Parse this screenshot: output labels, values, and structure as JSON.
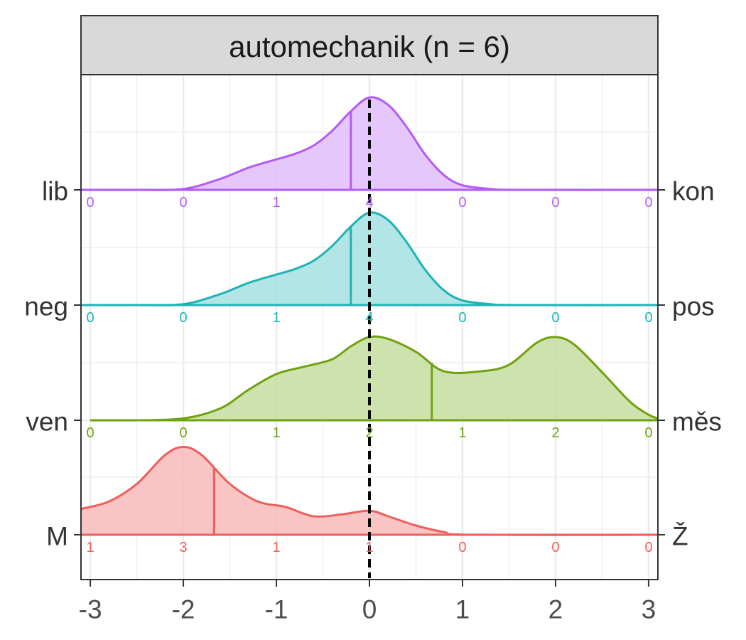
{
  "chart_data": {
    "type": "area",
    "subtype": "ridgeline-density",
    "facet_title": "automechanik (n = 6)",
    "xlim": [
      -3.1,
      3.1
    ],
    "x_ticks": [
      "-3",
      "-2",
      "-1",
      "0",
      "1",
      "2",
      "3"
    ],
    "x_tick_values": [
      -3,
      -2,
      -1,
      0,
      1,
      2,
      3
    ],
    "reference_line_x": 0,
    "grid": true,
    "series": [
      {
        "left_label": "lib",
        "right_label": "kon",
        "color": "#B35CF5",
        "fill": "#E0BDFB",
        "mean": -0.2,
        "counts_at": [
          -3,
          -2,
          -1,
          0,
          1,
          2,
          3
        ],
        "counts": [
          0,
          0,
          1,
          4,
          0,
          0,
          0
        ],
        "density": [
          [
            -3.1,
            0
          ],
          [
            -2.5,
            0
          ],
          [
            -2.0,
            0.01
          ],
          [
            -1.6,
            0.12
          ],
          [
            -1.3,
            0.24
          ],
          [
            -1.0,
            0.33
          ],
          [
            -0.8,
            0.39
          ],
          [
            -0.6,
            0.48
          ],
          [
            -0.4,
            0.64
          ],
          [
            -0.2,
            0.85
          ],
          [
            0.0,
            1.0
          ],
          [
            0.2,
            0.92
          ],
          [
            0.4,
            0.68
          ],
          [
            0.6,
            0.38
          ],
          [
            0.8,
            0.16
          ],
          [
            1.0,
            0.05
          ],
          [
            1.3,
            0.01
          ],
          [
            1.6,
            0
          ],
          [
            3.1,
            0
          ]
        ]
      },
      {
        "left_label": "neg",
        "right_label": "pos",
        "color": "#1FB2B6",
        "fill": "#A4E0E1",
        "mean": -0.2,
        "counts_at": [
          -3,
          -2,
          -1,
          0,
          1,
          2,
          3
        ],
        "counts": [
          0,
          0,
          1,
          4,
          0,
          0,
          0
        ],
        "density": [
          [
            -3.1,
            0
          ],
          [
            -2.5,
            0
          ],
          [
            -2.0,
            0.01
          ],
          [
            -1.6,
            0.12
          ],
          [
            -1.3,
            0.24
          ],
          [
            -1.0,
            0.33
          ],
          [
            -0.8,
            0.39
          ],
          [
            -0.6,
            0.48
          ],
          [
            -0.4,
            0.64
          ],
          [
            -0.2,
            0.85
          ],
          [
            0.0,
            1.0
          ],
          [
            0.2,
            0.92
          ],
          [
            0.4,
            0.68
          ],
          [
            0.6,
            0.38
          ],
          [
            0.8,
            0.16
          ],
          [
            1.0,
            0.05
          ],
          [
            1.3,
            0.01
          ],
          [
            1.6,
            0
          ],
          [
            3.1,
            0
          ]
        ]
      },
      {
        "left_label": "ven",
        "right_label": "měs",
        "color": "#6FA20F",
        "fill": "#C6DDA0",
        "mean": 0.67,
        "counts_at": [
          -3,
          -2,
          -1,
          0,
          1,
          2,
          3
        ],
        "counts": [
          0,
          0,
          1,
          2,
          1,
          2,
          0
        ],
        "density": [
          [
            -3.0,
            0
          ],
          [
            -2.5,
            0
          ],
          [
            -2.0,
            0.02
          ],
          [
            -1.6,
            0.13
          ],
          [
            -1.3,
            0.33
          ],
          [
            -1.0,
            0.5
          ],
          [
            -0.7,
            0.58
          ],
          [
            -0.4,
            0.66
          ],
          [
            -0.2,
            0.8
          ],
          [
            0.0,
            0.9
          ],
          [
            0.2,
            0.88
          ],
          [
            0.5,
            0.74
          ],
          [
            0.8,
            0.53
          ],
          [
            1.2,
            0.53
          ],
          [
            1.5,
            0.6
          ],
          [
            1.8,
            0.84
          ],
          [
            2.0,
            0.9
          ],
          [
            2.2,
            0.82
          ],
          [
            2.5,
            0.52
          ],
          [
            2.8,
            0.2
          ],
          [
            3.0,
            0.06
          ],
          [
            3.1,
            0.02
          ]
        ]
      },
      {
        "left_label": "M",
        "right_label": "Ž",
        "color": "#EF5E5B",
        "fill": "#F8BBBA",
        "mean": -1.67,
        "counts_at": [
          -3,
          -2,
          -1,
          0,
          1,
          2,
          3
        ],
        "counts": [
          1,
          3,
          1,
          1,
          0,
          0,
          0
        ],
        "density": [
          [
            -3.1,
            0.28
          ],
          [
            -2.8,
            0.36
          ],
          [
            -2.5,
            0.55
          ],
          [
            -2.2,
            0.86
          ],
          [
            -2.0,
            0.95
          ],
          [
            -1.8,
            0.86
          ],
          [
            -1.5,
            0.55
          ],
          [
            -1.2,
            0.36
          ],
          [
            -0.9,
            0.3
          ],
          [
            -0.6,
            0.2
          ],
          [
            -0.3,
            0.22
          ],
          [
            0.0,
            0.26
          ],
          [
            0.2,
            0.2
          ],
          [
            0.5,
            0.1
          ],
          [
            0.8,
            0.03
          ],
          [
            1.1,
            0
          ],
          [
            3.1,
            0
          ]
        ]
      }
    ]
  }
}
